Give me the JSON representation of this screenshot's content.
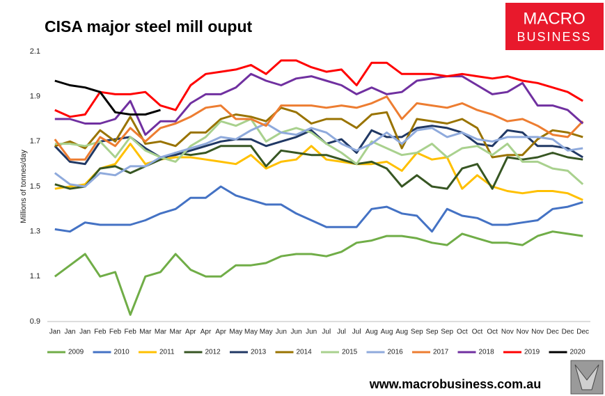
{
  "chart_data": {
    "type": "line",
    "title": "CISA major steel mill ouput",
    "ylabel": "Millions of tonnes/day",
    "logo": [
      "MACRO",
      "BUSINESS"
    ],
    "footer": "www.macrobusiness.com.au",
    "categories": [
      "Jan",
      "Jan",
      "Jan",
      "Feb",
      "Feb",
      "Feb",
      "Mar",
      "Mar",
      "Mar",
      "Apr",
      "Apr",
      "Apr",
      "May",
      "May",
      "May",
      "Jun",
      "Jun",
      "Jun",
      "Jul",
      "Jul",
      "Jul",
      "Aug",
      "Aug",
      "Aug",
      "Sep",
      "Sep",
      "Sep",
      "Oct",
      "Oct",
      "Oct",
      "Nov",
      "Nov",
      "Nov",
      "Dec",
      "Dec",
      "Dec"
    ],
    "ylim": [
      0.9,
      2.1
    ],
    "yticks": [
      0.9,
      1.1,
      1.3,
      1.5,
      1.7,
      1.9,
      2.1
    ],
    "grid": false,
    "legend": "bottom",
    "series": [
      {
        "name": "2009",
        "color": "#70ad47",
        "values": [
          1.1,
          1.15,
          1.2,
          1.1,
          1.12,
          0.93,
          1.1,
          1.12,
          1.2,
          1.13,
          1.1,
          1.1,
          1.15,
          1.15,
          1.16,
          1.19,
          1.2,
          1.2,
          1.19,
          1.21,
          1.25,
          1.26,
          1.28,
          1.28,
          1.27,
          1.25,
          1.24,
          1.29,
          1.27,
          1.25,
          1.25,
          1.24,
          1.28,
          1.3,
          1.29,
          1.28
        ]
      },
      {
        "name": "2010",
        "color": "#4472c4",
        "values": [
          1.31,
          1.3,
          1.34,
          1.33,
          1.33,
          1.33,
          1.35,
          1.38,
          1.4,
          1.45,
          1.45,
          1.5,
          1.46,
          1.44,
          1.42,
          1.42,
          1.38,
          1.35,
          1.32,
          1.32,
          1.32,
          1.4,
          1.41,
          1.38,
          1.37,
          1.3,
          1.4,
          1.37,
          1.36,
          1.33,
          1.33,
          1.34,
          1.35,
          1.4,
          1.41,
          1.43
        ]
      },
      {
        "name": "2011",
        "color": "#ffc000",
        "values": [
          1.49,
          1.5,
          1.51,
          1.58,
          1.6,
          1.69,
          1.6,
          1.62,
          1.63,
          1.63,
          1.62,
          1.61,
          1.6,
          1.64,
          1.58,
          1.61,
          1.62,
          1.68,
          1.62,
          1.61,
          1.6,
          1.6,
          1.61,
          1.57,
          1.65,
          1.62,
          1.63,
          1.49,
          1.55,
          1.5,
          1.48,
          1.47,
          1.48,
          1.48,
          1.47,
          1.44
        ]
      },
      {
        "name": "2012",
        "color": "#375623",
        "values": [
          1.51,
          1.49,
          1.5,
          1.58,
          1.59,
          1.56,
          1.59,
          1.62,
          1.65,
          1.64,
          1.65,
          1.68,
          1.68,
          1.68,
          1.59,
          1.66,
          1.65,
          1.64,
          1.64,
          1.62,
          1.6,
          1.61,
          1.58,
          1.5,
          1.55,
          1.5,
          1.49,
          1.58,
          1.6,
          1.49,
          1.63,
          1.62,
          1.63,
          1.65,
          1.63,
          1.62
        ]
      },
      {
        "name": "2013",
        "color": "#203864",
        "values": [
          1.68,
          1.61,
          1.6,
          1.7,
          1.71,
          1.72,
          1.67,
          1.63,
          1.64,
          1.66,
          1.68,
          1.7,
          1.71,
          1.71,
          1.68,
          1.7,
          1.72,
          1.75,
          1.69,
          1.71,
          1.65,
          1.75,
          1.72,
          1.72,
          1.76,
          1.77,
          1.76,
          1.74,
          1.69,
          1.68,
          1.75,
          1.74,
          1.68,
          1.68,
          1.67,
          1.63
        ]
      },
      {
        "name": "2014",
        "color": "#997300",
        "values": [
          1.68,
          1.7,
          1.67,
          1.75,
          1.7,
          1.81,
          1.69,
          1.7,
          1.68,
          1.74,
          1.74,
          1.8,
          1.82,
          1.81,
          1.79,
          1.85,
          1.83,
          1.78,
          1.8,
          1.8,
          1.76,
          1.82,
          1.83,
          1.67,
          1.8,
          1.79,
          1.78,
          1.8,
          1.76,
          1.63,
          1.64,
          1.64,
          1.71,
          1.75,
          1.74,
          1.72
        ]
      },
      {
        "name": "2015",
        "color": "#a9d18e",
        "values": [
          1.69,
          1.69,
          1.68,
          1.7,
          1.63,
          1.72,
          1.66,
          1.63,
          1.61,
          1.68,
          1.72,
          1.79,
          1.77,
          1.8,
          1.7,
          1.74,
          1.76,
          1.74,
          1.69,
          1.65,
          1.6,
          1.7,
          1.67,
          1.64,
          1.65,
          1.69,
          1.63,
          1.67,
          1.68,
          1.64,
          1.69,
          1.61,
          1.61,
          1.58,
          1.57,
          1.51
        ]
      },
      {
        "name": "2016",
        "color": "#8faadc",
        "values": [
          1.56,
          1.51,
          1.5,
          1.56,
          1.55,
          1.59,
          1.59,
          1.63,
          1.65,
          1.67,
          1.69,
          1.72,
          1.71,
          1.75,
          1.78,
          1.74,
          1.73,
          1.76,
          1.74,
          1.69,
          1.66,
          1.69,
          1.74,
          1.69,
          1.75,
          1.76,
          1.72,
          1.74,
          1.71,
          1.7,
          1.72,
          1.72,
          1.72,
          1.71,
          1.66,
          1.67
        ]
      },
      {
        "name": "2017",
        "color": "#ed7d31",
        "values": [
          1.71,
          1.62,
          1.62,
          1.72,
          1.68,
          1.76,
          1.7,
          1.76,
          1.78,
          1.81,
          1.85,
          1.86,
          1.8,
          1.8,
          1.77,
          1.86,
          1.86,
          1.86,
          1.85,
          1.86,
          1.85,
          1.87,
          1.9,
          1.8,
          1.87,
          1.86,
          1.85,
          1.87,
          1.84,
          1.82,
          1.79,
          1.8,
          1.77,
          1.73,
          1.72,
          1.79
        ]
      },
      {
        "name": "2018",
        "color": "#7030a0",
        "values": [
          1.8,
          1.8,
          1.78,
          1.78,
          1.8,
          1.88,
          1.73,
          1.79,
          1.79,
          1.87,
          1.91,
          1.91,
          1.94,
          2.0,
          1.97,
          1.95,
          1.98,
          1.99,
          1.97,
          1.95,
          1.91,
          1.94,
          1.91,
          1.92,
          1.97,
          1.98,
          1.99,
          1.99,
          1.95,
          1.91,
          1.92,
          1.96,
          1.86,
          1.86,
          1.84,
          1.78
        ]
      },
      {
        "name": "2019",
        "color": "#ff0000",
        "values": [
          1.84,
          1.81,
          1.82,
          1.92,
          1.91,
          1.91,
          1.92,
          1.86,
          1.84,
          1.95,
          2.0,
          2.01,
          2.02,
          2.04,
          2.0,
          2.06,
          2.06,
          2.03,
          2.01,
          2.02,
          1.95,
          2.05,
          2.05,
          2.0,
          2.0,
          2.0,
          1.99,
          2.0,
          1.99,
          1.98,
          1.99,
          1.97,
          1.96,
          1.94,
          1.92,
          1.88
        ]
      },
      {
        "name": "2020",
        "color": "#000000",
        "values": [
          1.97,
          1.95,
          1.94,
          1.92,
          1.83,
          1.82,
          1.82,
          1.84,
          null,
          null,
          null,
          null,
          null,
          null,
          null,
          null,
          null,
          null,
          null,
          null,
          null,
          null,
          null,
          null,
          null,
          null,
          null,
          null,
          null,
          null,
          null,
          null,
          null,
          null,
          null,
          null
        ]
      }
    ]
  }
}
